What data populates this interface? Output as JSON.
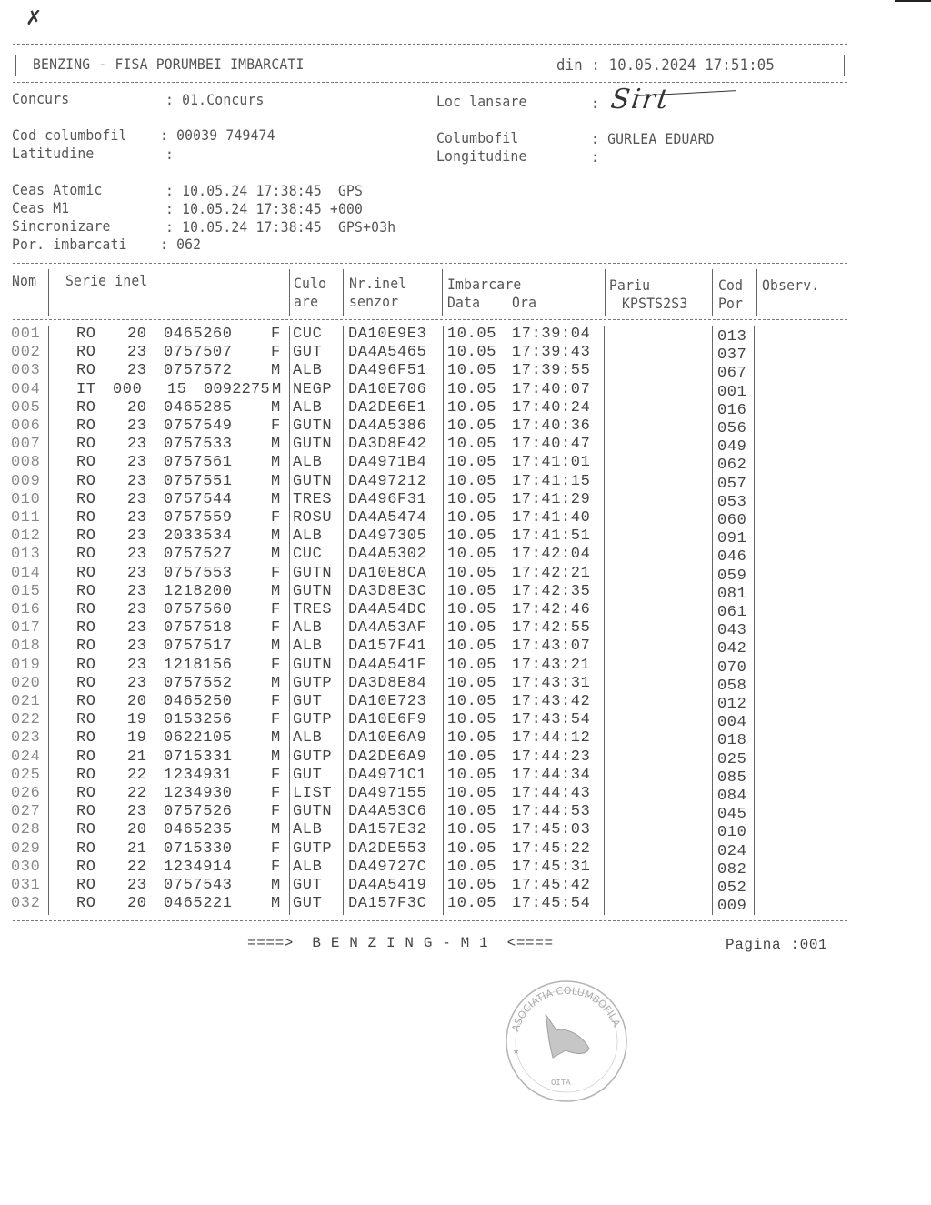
{
  "header": {
    "title": "BENZING - FISA PORUMBEI IMBARCATI",
    "date_label": "din : 10.05.2024 17:51:05"
  },
  "info": {
    "concurs_label": "Concurs",
    "concurs_value": ": 01.Concurs",
    "loc_lansare_label": "Loc lansare",
    "loc_lansare_colon": ":",
    "loc_lansare_handwritten": "Sirt",
    "cod_label": "Cod columbofil",
    "cod_value": ": 00039 749474",
    "latitudine_label": "Latitudine",
    "latitudine_value": ":",
    "columbofil_label": "Columbofil",
    "columbofil_value": ": GURLEA EDUARD",
    "longitudine_label": "Longitudine",
    "longitudine_value": ":",
    "ceas_atomic_label": "Ceas Atomic",
    "ceas_atomic_value": ": 10.05.24 17:38:45  GPS",
    "ceas_m1_label": "Ceas M1",
    "ceas_m1_value": ": 10.05.24 17:38:45 +000",
    "sincronizare_label": "Sincronizare",
    "sincronizare_value": ": 10.05.24 17:38:45  GPS+03h",
    "por_label": "Por. imbarcati",
    "por_value": ": 062"
  },
  "table": {
    "headers": {
      "nom": "Nom",
      "serie": "Serie inel",
      "culoare1": "Culo",
      "culoare2": "are",
      "nrinel1": "Nr.inel",
      "nrinel2": "senzor",
      "imbarcare": "Imbarcare",
      "data": "Data",
      "ora": "Ora",
      "pariu1": "Pariu",
      "pariu2": "KPSTS2S3",
      "cod1": "Cod",
      "cod2": "Por",
      "observ": "Observ."
    },
    "rows": [
      {
        "nom": "001",
        "country": "RO",
        "prefix": "",
        "year": "20",
        "number": "0465260",
        "sex": "F",
        "color": "CUC",
        "sensor": "DA10E9E3",
        "date": "10.05",
        "time": "17:39:04",
        "cod": "013"
      },
      {
        "nom": "002",
        "country": "RO",
        "prefix": "",
        "year": "23",
        "number": "0757507",
        "sex": "F",
        "color": "GUT",
        "sensor": "DA4A5465",
        "date": "10.05",
        "time": "17:39:43",
        "cod": "037"
      },
      {
        "nom": "003",
        "country": "RO",
        "prefix": "",
        "year": "23",
        "number": "0757572",
        "sex": "M",
        "color": "ALB",
        "sensor": "DA496F51",
        "date": "10.05",
        "time": "17:39:55",
        "cod": "067"
      },
      {
        "nom": "004",
        "country": "IT",
        "prefix": "000",
        "year": "15",
        "number": "0092275",
        "sex": "M",
        "color": "NEGP",
        "sensor": "DA10E706",
        "date": "10.05",
        "time": "17:40:07",
        "cod": "001"
      },
      {
        "nom": "005",
        "country": "RO",
        "prefix": "",
        "year": "20",
        "number": "0465285",
        "sex": "M",
        "color": "ALB",
        "sensor": "DA2DE6E1",
        "date": "10.05",
        "time": "17:40:24",
        "cod": "016"
      },
      {
        "nom": "006",
        "country": "RO",
        "prefix": "",
        "year": "23",
        "number": "0757549",
        "sex": "F",
        "color": "GUTN",
        "sensor": "DA4A5386",
        "date": "10.05",
        "time": "17:40:36",
        "cod": "056"
      },
      {
        "nom": "007",
        "country": "RO",
        "prefix": "",
        "year": "23",
        "number": "0757533",
        "sex": "M",
        "color": "GUTN",
        "sensor": "DA3D8E42",
        "date": "10.05",
        "time": "17:40:47",
        "cod": "049"
      },
      {
        "nom": "008",
        "country": "RO",
        "prefix": "",
        "year": "23",
        "number": "0757561",
        "sex": "M",
        "color": "ALB",
        "sensor": "DA4971B4",
        "date": "10.05",
        "time": "17:41:01",
        "cod": "062"
      },
      {
        "nom": "009",
        "country": "RO",
        "prefix": "",
        "year": "23",
        "number": "0757551",
        "sex": "M",
        "color": "GUTN",
        "sensor": "DA497212",
        "date": "10.05",
        "time": "17:41:15",
        "cod": "057"
      },
      {
        "nom": "010",
        "country": "RO",
        "prefix": "",
        "year": "23",
        "number": "0757544",
        "sex": "M",
        "color": "TRES",
        "sensor": "DA496F31",
        "date": "10.05",
        "time": "17:41:29",
        "cod": "053"
      },
      {
        "nom": "011",
        "country": "RO",
        "prefix": "",
        "year": "23",
        "number": "0757559",
        "sex": "F",
        "color": "ROSU",
        "sensor": "DA4A5474",
        "date": "10.05",
        "time": "17:41:40",
        "cod": "060"
      },
      {
        "nom": "012",
        "country": "RO",
        "prefix": "",
        "year": "23",
        "number": "2033534",
        "sex": "M",
        "color": "ALB",
        "sensor": "DA497305",
        "date": "10.05",
        "time": "17:41:51",
        "cod": "091"
      },
      {
        "nom": "013",
        "country": "RO",
        "prefix": "",
        "year": "23",
        "number": "0757527",
        "sex": "M",
        "color": "CUC",
        "sensor": "DA4A5302",
        "date": "10.05",
        "time": "17:42:04",
        "cod": "046"
      },
      {
        "nom": "014",
        "country": "RO",
        "prefix": "",
        "year": "23",
        "number": "0757553",
        "sex": "F",
        "color": "GUTN",
        "sensor": "DA10E8CA",
        "date": "10.05",
        "time": "17:42:21",
        "cod": "059"
      },
      {
        "nom": "015",
        "country": "RO",
        "prefix": "",
        "year": "23",
        "number": "1218200",
        "sex": "M",
        "color": "GUTN",
        "sensor": "DA3D8E3C",
        "date": "10.05",
        "time": "17:42:35",
        "cod": "081"
      },
      {
        "nom": "016",
        "country": "RO",
        "prefix": "",
        "year": "23",
        "number": "0757560",
        "sex": "F",
        "color": "TRES",
        "sensor": "DA4A54DC",
        "date": "10.05",
        "time": "17:42:46",
        "cod": "061"
      },
      {
        "nom": "017",
        "country": "RO",
        "prefix": "",
        "year": "23",
        "number": "0757518",
        "sex": "F",
        "color": "ALB",
        "sensor": "DA4A53AF",
        "date": "10.05",
        "time": "17:42:55",
        "cod": "043"
      },
      {
        "nom": "018",
        "country": "RO",
        "prefix": "",
        "year": "23",
        "number": "0757517",
        "sex": "M",
        "color": "ALB",
        "sensor": "DA157F41",
        "date": "10.05",
        "time": "17:43:07",
        "cod": "042"
      },
      {
        "nom": "019",
        "country": "RO",
        "prefix": "",
        "year": "23",
        "number": "1218156",
        "sex": "F",
        "color": "GUTN",
        "sensor": "DA4A541F",
        "date": "10.05",
        "time": "17:43:21",
        "cod": "070"
      },
      {
        "nom": "020",
        "country": "RO",
        "prefix": "",
        "year": "23",
        "number": "0757552",
        "sex": "M",
        "color": "GUTP",
        "sensor": "DA3D8E84",
        "date": "10.05",
        "time": "17:43:31",
        "cod": "058"
      },
      {
        "nom": "021",
        "country": "RO",
        "prefix": "",
        "year": "20",
        "number": "0465250",
        "sex": "F",
        "color": "GUT",
        "sensor": "DA10E723",
        "date": "10.05",
        "time": "17:43:42",
        "cod": "012"
      },
      {
        "nom": "022",
        "country": "RO",
        "prefix": "",
        "year": "19",
        "number": "0153256",
        "sex": "F",
        "color": "GUTP",
        "sensor": "DA10E6F9",
        "date": "10.05",
        "time": "17:43:54",
        "cod": "004"
      },
      {
        "nom": "023",
        "country": "RO",
        "prefix": "",
        "year": "19",
        "number": "0622105",
        "sex": "M",
        "color": "ALB",
        "sensor": "DA10E6A9",
        "date": "10.05",
        "time": "17:44:12",
        "cod": "018"
      },
      {
        "nom": "024",
        "country": "RO",
        "prefix": "",
        "year": "21",
        "number": "0715331",
        "sex": "M",
        "color": "GUTP",
        "sensor": "DA2DE6A9",
        "date": "10.05",
        "time": "17:44:23",
        "cod": "025"
      },
      {
        "nom": "025",
        "country": "RO",
        "prefix": "",
        "year": "22",
        "number": "1234931",
        "sex": "F",
        "color": "GUT",
        "sensor": "DA4971C1",
        "date": "10.05",
        "time": "17:44:34",
        "cod": "085"
      },
      {
        "nom": "026",
        "country": "RO",
        "prefix": "",
        "year": "22",
        "number": "1234930",
        "sex": "F",
        "color": "LIST",
        "sensor": "DA497155",
        "date": "10.05",
        "time": "17:44:43",
        "cod": "084"
      },
      {
        "nom": "027",
        "country": "RO",
        "prefix": "",
        "year": "23",
        "number": "0757526",
        "sex": "F",
        "color": "GUTN",
        "sensor": "DA4A53C6",
        "date": "10.05",
        "time": "17:44:53",
        "cod": "045"
      },
      {
        "nom": "028",
        "country": "RO",
        "prefix": "",
        "year": "20",
        "number": "0465235",
        "sex": "M",
        "color": "ALB",
        "sensor": "DA157E32",
        "date": "10.05",
        "time": "17:45:03",
        "cod": "010"
      },
      {
        "nom": "029",
        "country": "RO",
        "prefix": "",
        "year": "21",
        "number": "0715330",
        "sex": "F",
        "color": "GUTP",
        "sensor": "DA2DE553",
        "date": "10.05",
        "time": "17:45:22",
        "cod": "024"
      },
      {
        "nom": "030",
        "country": "RO",
        "prefix": "",
        "year": "22",
        "number": "1234914",
        "sex": "F",
        "color": "ALB",
        "sensor": "DA49727C",
        "date": "10.05",
        "time": "17:45:31",
        "cod": "082"
      },
      {
        "nom": "031",
        "country": "RO",
        "prefix": "",
        "year": "23",
        "number": "0757543",
        "sex": "M",
        "color": "GUT",
        "sensor": "DA4A5419",
        "date": "10.05",
        "time": "17:45:42",
        "cod": "052"
      },
      {
        "nom": "032",
        "country": "RO",
        "prefix": "",
        "year": "20",
        "number": "0465221",
        "sex": "M",
        "color": "GUT",
        "sensor": "DA157F3C",
        "date": "10.05",
        "time": "17:45:54",
        "cod": "009"
      }
    ]
  },
  "footer": {
    "center": "====>  B E N Z I N G - M 1  <====",
    "page": "Pagina :001"
  },
  "stamp": {
    "text": "ASOCIATIA COLUMBOFILA",
    "bottom": "OITA"
  }
}
